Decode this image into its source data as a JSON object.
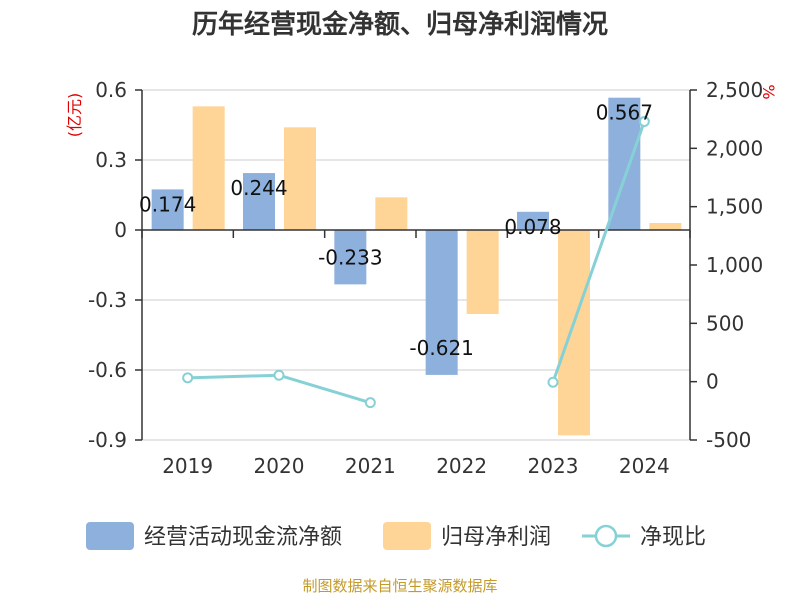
{
  "chart_data": {
    "type": "bar",
    "title": "历年经营现金净额、归母净利润情况",
    "categories": [
      "2019",
      "2020",
      "2021",
      "2022",
      "2023",
      "2024"
    ],
    "y_left": {
      "unit": "(亿元)",
      "ylim": [
        -0.9,
        0.6
      ],
      "ticks": [
        0.6,
        0.3,
        0,
        -0.3,
        -0.6,
        -0.9
      ],
      "tick_labels": [
        "0.6",
        "0.3",
        "0",
        "-0.3",
        "-0.6",
        "-0.9"
      ]
    },
    "y_right": {
      "unit": "%",
      "ylim": [
        -500,
        2500
      ],
      "ticks": [
        2500,
        2000,
        1500,
        1000,
        500,
        0,
        -500
      ],
      "tick_labels": [
        "2,500",
        "2,000",
        "1,500",
        "1,000",
        "500",
        "0",
        "-500"
      ]
    },
    "series": [
      {
        "name": "经营活动现金流净额",
        "type": "bar",
        "axis": "left",
        "color": "#8eb0dc",
        "values": [
          0.174,
          0.244,
          -0.233,
          -0.621,
          0.078,
          0.567
        ],
        "labels": [
          "0.174",
          "0.244",
          "-0.233",
          "-0.621",
          "0.078",
          "0.567"
        ]
      },
      {
        "name": "归母净利润",
        "type": "bar",
        "axis": "left",
        "color": "#fed597",
        "values": [
          0.53,
          0.44,
          0.14,
          -0.36,
          -0.88,
          0.03
        ]
      },
      {
        "name": "净现比",
        "type": "line",
        "axis": "right",
        "color": "#86d1d6",
        "values": [
          33,
          55,
          -180,
          null,
          -5,
          2230
        ]
      }
    ],
    "grid": true,
    "legend_position": "bottom",
    "source": "制图数据来自恒生聚源数据库"
  }
}
